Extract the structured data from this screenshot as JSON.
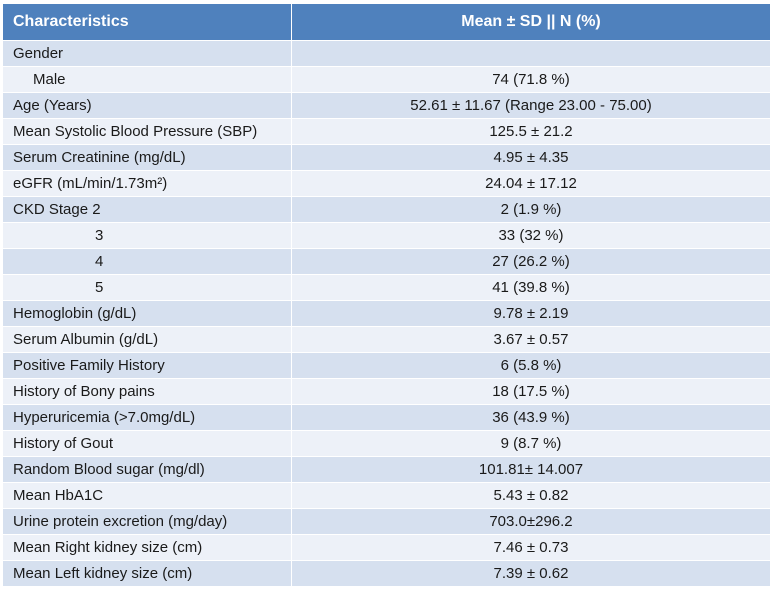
{
  "table": {
    "headers": [
      "Characteristics",
      "Mean ± SD || N (%)"
    ],
    "rows": [
      {
        "label": "Gender",
        "value": ""
      },
      {
        "label": "Male",
        "value": "74 (71.8 %)"
      },
      {
        "label": "Age (Years)",
        "value": "52.61 ± 11.67 (Range 23.00 - 75.00)"
      },
      {
        "label": "Mean Systolic Blood Pressure (SBP)",
        "value": "125.5 ± 21.2"
      },
      {
        "label": "Serum Creatinine (mg/dL)",
        "value": "4.95 ± 4.35"
      },
      {
        "label": "eGFR (mL/min/1.73m²)",
        "value": "24.04 ± 17.12"
      },
      {
        "label": "CKD Stage  2",
        "value": "2 (1.9 %)"
      },
      {
        "label": "3",
        "value": "33 (32 %)"
      },
      {
        "label": "4",
        "value": "27 (26.2 %)"
      },
      {
        "label": "5",
        "value": "41 (39.8 %)"
      },
      {
        "label": "Hemoglobin (g/dL)",
        "value": "9.78 ± 2.19"
      },
      {
        "label": "Serum Albumin (g/dL)",
        "value": "3.67 ± 0.57"
      },
      {
        "label": "Positive Family History",
        "value": "6 (5.8 %)"
      },
      {
        "label": "History of Bony pains",
        "value": "18 (17.5 %)"
      },
      {
        "label": "Hyperuricemia (>7.0mg/dL)",
        "value": "36 (43.9 %)"
      },
      {
        "label": "History of Gout",
        "value": "9 (8.7 %)"
      },
      {
        "label": "Random Blood sugar (mg/dl)",
        "value": "101.81± 14.007"
      },
      {
        "label": "Mean HbA1C",
        "value": "5.43 ± 0.82"
      },
      {
        "label": "Urine protein excretion (mg/day)",
        "value": "703.0±296.2"
      },
      {
        "label": "Mean Right kidney size (cm)",
        "value": "7.46 ± 0.73"
      },
      {
        "label": "Mean Left kidney size (cm)",
        "value": "7.39 ± 0.62"
      }
    ]
  },
  "colors": {
    "header_bg": "#4f81bd",
    "row_odd": "#d6e0ef",
    "row_even": "#edf1f8"
  }
}
